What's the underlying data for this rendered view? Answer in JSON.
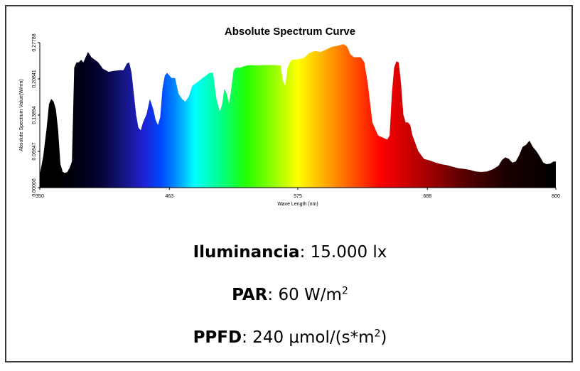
{
  "chart_data": {
    "type": "area",
    "title": "Absolute Spectrum Curve",
    "xlabel": "Wave Length (nm)",
    "ylabel": "Absolute Spectrum Value(W/nm)",
    "xlim": [
      350,
      800
    ],
    "ylim": [
      0,
      0.27788
    ],
    "x_ticks": [
      "350",
      "463",
      "575",
      "688",
      "800"
    ],
    "y_ticks": [
      "0.00000",
      "0.06947",
      "0.13894",
      "0.20841",
      "0.27788"
    ],
    "grid": false,
    "legend": "none",
    "x": [
      350,
      353,
      356,
      358,
      360,
      362,
      364,
      366,
      368,
      370,
      372,
      374,
      376,
      378,
      380,
      382,
      384,
      386,
      388,
      390,
      392,
      395,
      398,
      401,
      405,
      410,
      415,
      420,
      423,
      426,
      428,
      430,
      432,
      434,
      436,
      438,
      440,
      443,
      446,
      449,
      451,
      453,
      455,
      457,
      459,
      461,
      463,
      465,
      468,
      471,
      474,
      477,
      480,
      483,
      486,
      489,
      492,
      495,
      498,
      501,
      504,
      507,
      509,
      511,
      513,
      515,
      517,
      519,
      521,
      523,
      525,
      527,
      530,
      535,
      540,
      545,
      550,
      555,
      560,
      562,
      564,
      566,
      568,
      570,
      575,
      580,
      585,
      590,
      595,
      600,
      605,
      610,
      615,
      618,
      621,
      624,
      627,
      630,
      633,
      636,
      640,
      645,
      650,
      653,
      655,
      657,
      659,
      661,
      663,
      665,
      667,
      669,
      671,
      673,
      675,
      680,
      685,
      690,
      695,
      700,
      705,
      710,
      715,
      720,
      725,
      730,
      735,
      740,
      745,
      750,
      753,
      756,
      759,
      762,
      765,
      768,
      771,
      774,
      777,
      780,
      783,
      786,
      789,
      792,
      795,
      798,
      800
    ],
    "y": [
      0.025,
      0.06,
      0.115,
      0.16,
      0.17,
      0.165,
      0.15,
      0.11,
      0.045,
      0.03,
      0.028,
      0.03,
      0.038,
      0.05,
      0.23,
      0.24,
      0.24,
      0.245,
      0.24,
      0.25,
      0.26,
      0.25,
      0.245,
      0.24,
      0.228,
      0.222,
      0.224,
      0.225,
      0.225,
      0.238,
      0.24,
      0.22,
      0.18,
      0.14,
      0.115,
      0.11,
      0.125,
      0.14,
      0.17,
      0.15,
      0.13,
      0.12,
      0.135,
      0.19,
      0.215,
      0.22,
      0.215,
      0.21,
      0.21,
      0.18,
      0.17,
      0.165,
      0.175,
      0.195,
      0.2,
      0.205,
      0.21,
      0.215,
      0.22,
      0.22,
      0.17,
      0.145,
      0.16,
      0.19,
      0.18,
      0.16,
      0.19,
      0.225,
      0.23,
      0.23,
      0.23,
      0.232,
      0.234,
      0.235,
      0.234,
      0.235,
      0.235,
      0.235,
      0.234,
      0.205,
      0.195,
      0.23,
      0.24,
      0.245,
      0.246,
      0.248,
      0.258,
      0.262,
      0.26,
      0.265,
      0.27,
      0.272,
      0.275,
      0.27,
      0.255,
      0.25,
      0.25,
      0.25,
      0.24,
      0.2,
      0.125,
      0.1,
      0.095,
      0.092,
      0.1,
      0.18,
      0.23,
      0.242,
      0.24,
      0.2,
      0.14,
      0.125,
      0.125,
      0.12,
      0.1,
      0.07,
      0.055,
      0.052,
      0.048,
      0.045,
      0.043,
      0.04,
      0.037,
      0.036,
      0.034,
      0.031,
      0.03,
      0.031,
      0.035,
      0.042,
      0.053,
      0.058,
      0.055,
      0.048,
      0.05,
      0.062,
      0.078,
      0.082,
      0.09,
      0.078,
      0.07,
      0.06,
      0.048,
      0.045,
      0.046,
      0.05,
      0.05
    ]
  },
  "metrics": {
    "illuminance_label": "Iluminancia",
    "illuminance_value": "15.000 lx",
    "par_label": "PAR",
    "par_value": "60 W/m",
    "par_sup": "2",
    "ppfd_label": "PPFD",
    "ppfd_value": "240 μmol/(s*m",
    "ppfd_sup": "2",
    "ppfd_tail": ")"
  }
}
